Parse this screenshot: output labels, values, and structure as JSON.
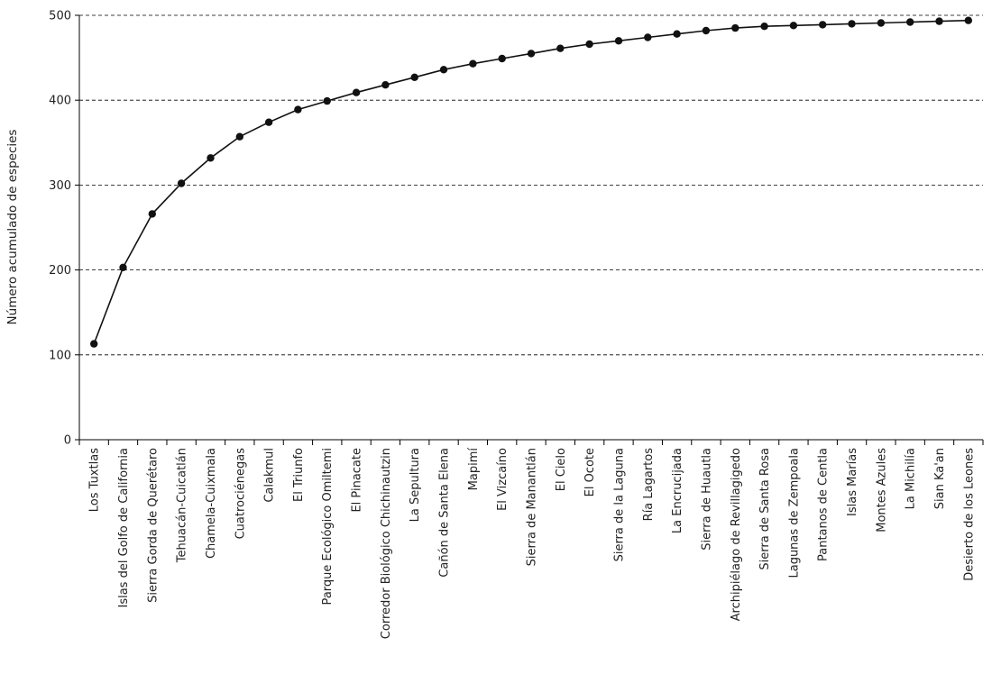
{
  "chart_data": {
    "type": "line",
    "title": "",
    "xlabel": "",
    "ylabel": "Número acumulado de especies",
    "ylim": [
      0,
      500
    ],
    "yticks": [
      0,
      100,
      200,
      300,
      400,
      500
    ],
    "grid": "horizontal dashed",
    "categories": [
      "Los Tuxtlas",
      "Islas del Golfo de California",
      "Sierra Gorda de Querétaro",
      "Tehuacán-Cuicatlán",
      "Chamela-Cuixmala",
      "Cuatrociénegas",
      "Calakmul",
      "El Triunfo",
      "Parque Ecológico Omiltemi",
      "El Pinacate",
      "Corredor Biológico Chichinautzin",
      "La Sepultura",
      "Cañón de Santa Elena",
      "Mapimí",
      "El Vizcaíno",
      "Sierra de Manantlán",
      "El Cielo",
      "El Ocote",
      "Sierra de la Laguna",
      "Ría Lagartos",
      "La Encrucijada",
      "Sierra de Huautla",
      "Archipiélago de Revillagigedo",
      "Sierra de Santa Rosa",
      "Lagunas de Zempoala",
      "Pantanos de Centla",
      "Islas Marías",
      "Montes Azules",
      "La Michilía",
      "Sian Ka'an",
      "Desierto de los Leones"
    ],
    "series": [
      {
        "color": "#111111",
        "values": [
          113,
          203,
          266,
          302,
          332,
          357,
          374,
          389,
          399,
          409,
          418,
          427,
          436,
          443,
          449,
          455,
          461,
          466,
          470,
          474,
          478,
          482,
          485,
          487,
          488,
          489,
          490,
          491,
          492,
          493,
          494
        ]
      }
    ]
  }
}
